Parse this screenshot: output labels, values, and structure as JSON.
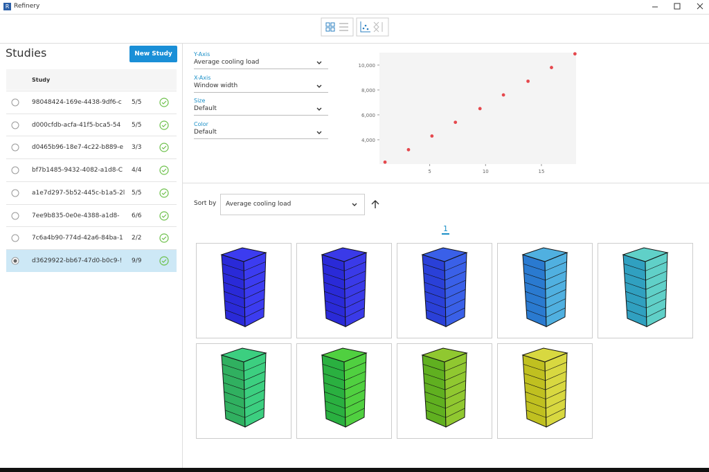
{
  "window": {
    "title": "Refinery"
  },
  "studies": {
    "title": "Studies",
    "new_button": "New Study",
    "column": "Study",
    "rows": [
      {
        "id": "98048424-169e-4438-9df6-c",
        "progress": "5/5"
      },
      {
        "id": "d000cfdb-acfa-41f5-bca5-54",
        "progress": "5/5"
      },
      {
        "id": "d0465b96-18e7-4c22-b889-e",
        "progress": "3/3"
      },
      {
        "id": "bf7b1485-9432-4082-a1d8-C",
        "progress": "4/4"
      },
      {
        "id": "a1e7d297-5b52-445c-b1a5-2l",
        "progress": "5/5"
      },
      {
        "id": "7ee9b835-0e0e-4388-a1d8-",
        "progress": "6/6"
      },
      {
        "id": "7c6a4b90-774d-42a6-84ba-1",
        "progress": "2/2"
      },
      {
        "id": "d3629922-bb67-47d0-b0c9-!",
        "progress": "9/9",
        "selected": true
      }
    ]
  },
  "controls": [
    {
      "label": "Y-Axis",
      "value": "Average cooling load"
    },
    {
      "label": "X-Axis",
      "value": "Window width"
    },
    {
      "label": "Size",
      "value": "Default"
    },
    {
      "label": "Color",
      "value": "Default"
    }
  ],
  "chart_data": {
    "type": "scatter",
    "color": "#e5484d",
    "x": [
      1,
      3.1,
      5.2,
      7.3,
      9.5,
      11.6,
      13.8,
      15.9,
      18
    ],
    "values": [
      2200,
      3200,
      4300,
      5400,
      6500,
      7600,
      8700,
      9800,
      10900
    ],
    "xlim": [
      0.5,
      18.1
    ],
    "ylim": [
      2050,
      11000
    ],
    "xticks": [
      5,
      10,
      15
    ],
    "yticks": [
      {
        "value": 4000,
        "label": "4,000"
      },
      {
        "value": 6000,
        "label": "6,000"
      },
      {
        "value": 8000,
        "label": "8,000"
      },
      {
        "value": 10000,
        "label": "10,000"
      }
    ]
  },
  "sort": {
    "label": "Sort by",
    "value": "Average cooling load"
  },
  "page_number": 1
}
